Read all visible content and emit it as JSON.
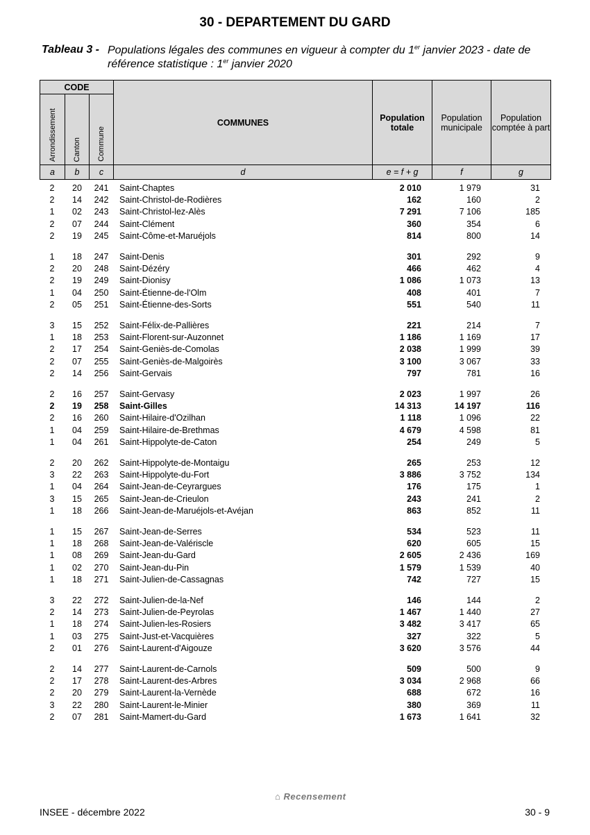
{
  "header": {
    "title": "30 - DEPARTEMENT DU GARD",
    "table_label": "Tableau 3 -",
    "caption": [
      "Populations légales des communes en vigueur à compter du 1",
      "er",
      " janvier  2023 - date de référence statistique : 1",
      "er",
      " janvier 2020"
    ]
  },
  "table": {
    "code_header": "CODE",
    "code_columns": [
      "Arrondissement",
      "Canton",
      "Commune"
    ],
    "communes_header": "COMMUNES",
    "population_headers": [
      "Population totale",
      "Population municipale",
      "Population comptée à part"
    ],
    "letters": [
      "a",
      "b",
      "c",
      "d",
      "e = f + g",
      "f",
      "g"
    ],
    "groups": [
      [
        {
          "cells": [
            "2",
            "20",
            "241",
            "Saint-Chaptes",
            "2 010",
            "1 979",
            "31"
          ]
        },
        {
          "cells": [
            "2",
            "14",
            "242",
            "Saint-Christol-de-Rodières",
            "162",
            "160",
            "2"
          ]
        },
        {
          "cells": [
            "1",
            "02",
            "243",
            "Saint-Christol-lez-Alès",
            "7 291",
            "7 106",
            "185"
          ]
        },
        {
          "cells": [
            "2",
            "07",
            "244",
            "Saint-Clément",
            "360",
            "354",
            "6"
          ]
        },
        {
          "cells": [
            "2",
            "19",
            "245",
            "Saint-Côme-et-Maruéjols",
            "814",
            "800",
            "14"
          ]
        }
      ],
      [
        {
          "cells": [
            "1",
            "18",
            "247",
            "Saint-Denis",
            "301",
            "292",
            "9"
          ]
        },
        {
          "cells": [
            "2",
            "20",
            "248",
            "Saint-Dézéry",
            "466",
            "462",
            "4"
          ]
        },
        {
          "cells": [
            "2",
            "19",
            "249",
            "Saint-Dionisy",
            "1 086",
            "1 073",
            "13"
          ]
        },
        {
          "cells": [
            "1",
            "04",
            "250",
            "Saint-Étienne-de-l'Olm",
            "408",
            "401",
            "7"
          ]
        },
        {
          "cells": [
            "2",
            "05",
            "251",
            "Saint-Étienne-des-Sorts",
            "551",
            "540",
            "11"
          ]
        }
      ],
      [
        {
          "cells": [
            "3",
            "15",
            "252",
            "Saint-Félix-de-Pallières",
            "221",
            "214",
            "7"
          ]
        },
        {
          "cells": [
            "1",
            "18",
            "253",
            "Saint-Florent-sur-Auzonnet",
            "1 186",
            "1 169",
            "17"
          ]
        },
        {
          "cells": [
            "2",
            "17",
            "254",
            "Saint-Geniès-de-Comolas",
            "2 038",
            "1 999",
            "39"
          ]
        },
        {
          "cells": [
            "2",
            "07",
            "255",
            "Saint-Geniès-de-Malgoirès",
            "3 100",
            "3 067",
            "33"
          ]
        },
        {
          "cells": [
            "2",
            "14",
            "256",
            "Saint-Gervais",
            "797",
            "781",
            "16"
          ]
        }
      ],
      [
        {
          "cells": [
            "2",
            "16",
            "257",
            "Saint-Gervasy",
            "2 023",
            "1 997",
            "26"
          ]
        },
        {
          "cells": [
            "2",
            "19",
            "258",
            "Saint-Gilles",
            "14 313",
            "14 197",
            "116"
          ],
          "bold": true
        },
        {
          "cells": [
            "2",
            "16",
            "260",
            "Saint-Hilaire-d'Ozilhan",
            "1 118",
            "1 096",
            "22"
          ]
        },
        {
          "cells": [
            "1",
            "04",
            "259",
            "Saint-Hilaire-de-Brethmas",
            "4 679",
            "4 598",
            "81"
          ]
        },
        {
          "cells": [
            "1",
            "04",
            "261",
            "Saint-Hippolyte-de-Caton",
            "254",
            "249",
            "5"
          ]
        }
      ],
      [
        {
          "cells": [
            "2",
            "20",
            "262",
            "Saint-Hippolyte-de-Montaigu",
            "265",
            "253",
            "12"
          ]
        },
        {
          "cells": [
            "3",
            "22",
            "263",
            "Saint-Hippolyte-du-Fort",
            "3 886",
            "3 752",
            "134"
          ]
        },
        {
          "cells": [
            "1",
            "04",
            "264",
            "Saint-Jean-de-Ceyrargues",
            "176",
            "175",
            "1"
          ]
        },
        {
          "cells": [
            "3",
            "15",
            "265",
            "Saint-Jean-de-Crieulon",
            "243",
            "241",
            "2"
          ]
        },
        {
          "cells": [
            "1",
            "18",
            "266",
            "Saint-Jean-de-Maruéjols-et-Avéjan",
            "863",
            "852",
            "11"
          ]
        }
      ],
      [
        {
          "cells": [
            "1",
            "15",
            "267",
            "Saint-Jean-de-Serres",
            "534",
            "523",
            "11"
          ]
        },
        {
          "cells": [
            "1",
            "18",
            "268",
            "Saint-Jean-de-Valériscle",
            "620",
            "605",
            "15"
          ]
        },
        {
          "cells": [
            "1",
            "08",
            "269",
            "Saint-Jean-du-Gard",
            "2 605",
            "2 436",
            "169"
          ]
        },
        {
          "cells": [
            "1",
            "02",
            "270",
            "Saint-Jean-du-Pin",
            "1 579",
            "1 539",
            "40"
          ]
        },
        {
          "cells": [
            "1",
            "18",
            "271",
            "Saint-Julien-de-Cassagnas",
            "742",
            "727",
            "15"
          ]
        }
      ],
      [
        {
          "cells": [
            "3",
            "22",
            "272",
            "Saint-Julien-de-la-Nef",
            "146",
            "144",
            "2"
          ]
        },
        {
          "cells": [
            "2",
            "14",
            "273",
            "Saint-Julien-de-Peyrolas",
            "1 467",
            "1 440",
            "27"
          ]
        },
        {
          "cells": [
            "1",
            "18",
            "274",
            "Saint-Julien-les-Rosiers",
            "3 482",
            "3 417",
            "65"
          ]
        },
        {
          "cells": [
            "1",
            "03",
            "275",
            "Saint-Just-et-Vacquières",
            "327",
            "322",
            "5"
          ]
        },
        {
          "cells": [
            "2",
            "01",
            "276",
            "Saint-Laurent-d'Aigouze",
            "3 620",
            "3 576",
            "44"
          ]
        }
      ],
      [
        {
          "cells": [
            "2",
            "14",
            "277",
            "Saint-Laurent-de-Carnols",
            "509",
            "500",
            "9"
          ]
        },
        {
          "cells": [
            "2",
            "17",
            "278",
            "Saint-Laurent-des-Arbres",
            "3 034",
            "2 968",
            "66"
          ]
        },
        {
          "cells": [
            "2",
            "20",
            "279",
            "Saint-Laurent-la-Vernède",
            "688",
            "672",
            "16"
          ]
        },
        {
          "cells": [
            "3",
            "22",
            "280",
            "Saint-Laurent-le-Minier",
            "380",
            "369",
            "11"
          ]
        },
        {
          "cells": [
            "2",
            "07",
            "281",
            "Saint-Mamert-du-Gard",
            "1 673",
            "1 641",
            "32"
          ]
        }
      ]
    ]
  },
  "footer": {
    "left": "INSEE - décembre 2022",
    "logo": "Recensement",
    "right": "30 - 9"
  }
}
